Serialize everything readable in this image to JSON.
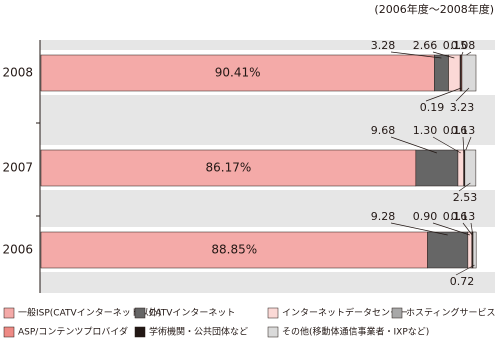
{
  "chart_data": {
    "type": "stacked_bar_horizontal",
    "subtitle": "(2006年度～2008年度)",
    "categories": [
      "2008",
      "2007",
      "2006"
    ],
    "xlim": [
      0,
      100
    ],
    "series": [
      {
        "name": "一般ISP(CATVインターネット以外)",
        "color": "#f4aaa8",
        "values": [
          90.41,
          86.17,
          88.85
        ],
        "value_labels": [
          "90.41%",
          "86.17%",
          "88.85%"
        ]
      },
      {
        "name": "CATVインターネット",
        "color": "#666666",
        "values": [
          3.28,
          9.68,
          9.28
        ],
        "value_labels": [
          "3.28",
          "9.68",
          "9.28"
        ]
      },
      {
        "name": "インターネットデータセンター",
        "color": "#fbd9d6",
        "values": [
          2.66,
          1.3,
          0.9
        ],
        "value_labels": [
          "2.66",
          "1.30",
          "0.90"
        ]
      },
      {
        "name": "ホスティングサービス",
        "color": "#a8a8a8",
        "values": [
          0.15,
          0.16,
          0.16
        ],
        "value_labels": [
          "0.15",
          "0.16",
          "0.16"
        ]
      },
      {
        "name": "ASP/コンテンツプロバイダ",
        "color": "#ee8a85",
        "values": [
          0.19,
          null,
          null
        ],
        "value_labels": [
          "0.19",
          null,
          null
        ]
      },
      {
        "name": "学術機関・公共団体など",
        "color": "#231815",
        "values": [
          0.08,
          0.13,
          0.13
        ],
        "value_labels": [
          "0.08",
          "0.13",
          "0.13"
        ]
      },
      {
        "name": "その他(移動体通信事業者・IXPなど)",
        "color": "#dadada",
        "values": [
          3.23,
          2.53,
          0.72
        ],
        "value_labels": [
          "3.23",
          "2.53",
          "0.72"
        ]
      }
    ]
  }
}
